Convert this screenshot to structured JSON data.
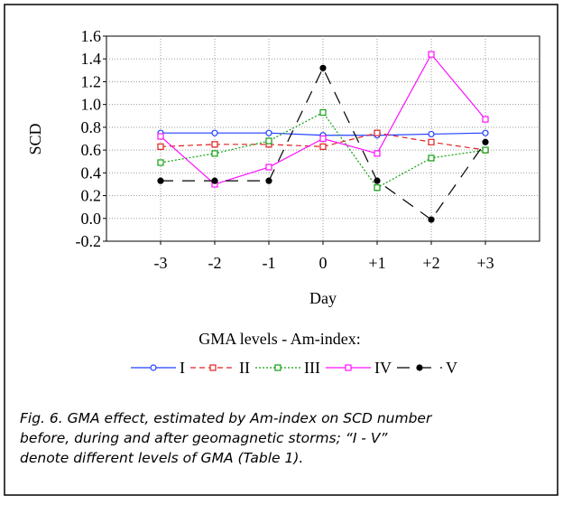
{
  "chart_data": {
    "type": "line",
    "x_label": "Day",
    "y_label": "SCD",
    "categories": [
      "-3",
      "-2",
      "-1",
      "0",
      "+1",
      "+2",
      "+3"
    ],
    "ylim": [
      -0.2,
      1.6
    ],
    "yticks": [
      -0.2,
      {
        "value": 0,
        "label": "0.0"
      },
      0.2,
      0.4,
      0.6,
      0.8,
      {
        "value": 1,
        "label": "1.0"
      },
      1.2,
      1.4,
      1.6
    ],
    "grid": true,
    "legend_title": "GMA levels - Am-index:",
    "series": [
      {
        "name": "I",
        "color": "#2040ff",
        "line_style": "solid",
        "marker": "circle-open",
        "values": [
          0.75,
          0.75,
          0.75,
          0.73,
          0.73,
          0.74,
          0.75
        ]
      },
      {
        "name": "II",
        "color": "#e02020",
        "line_style": "dashed",
        "marker": "square-open",
        "values": [
          0.63,
          0.65,
          0.65,
          0.63,
          0.75,
          0.67,
          0.6
        ]
      },
      {
        "name": "III",
        "color": "#10a010",
        "line_style": "dotted",
        "marker": "square-open",
        "values": [
          0.49,
          0.57,
          0.68,
          0.93,
          0.27,
          0.53,
          0.6
        ]
      },
      {
        "name": "IV",
        "color": "#ff10ff",
        "line_style": "solid",
        "marker": "square-open",
        "values": [
          0.72,
          0.3,
          0.45,
          0.7,
          0.57,
          1.44,
          0.87
        ]
      },
      {
        "name": "V",
        "color": "#000000",
        "line_style": "longdash",
        "marker": "circle",
        "values": [
          0.33,
          0.33,
          0.33,
          1.32,
          0.33,
          -0.01,
          0.67
        ]
      }
    ],
    "caption": [
      "Fig. 6. GMA effect, estimated by Am-index on SCD number",
      "before, during and after geomagnetic storms; “I - V”",
      "denote different levels of GMA (Table 1)."
    ]
  }
}
